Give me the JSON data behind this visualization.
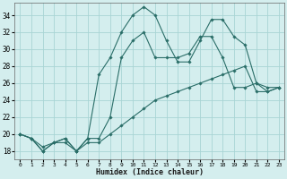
{
  "title": "",
  "xlabel": "Humidex (Indice chaleur)",
  "bg_color": "#d4eeee",
  "grid_color": "#a8d4d4",
  "line_color": "#2a6e68",
  "xlim": [
    -0.5,
    23.5
  ],
  "ylim": [
    17,
    35.5
  ],
  "yticks": [
    18,
    20,
    22,
    24,
    26,
    28,
    30,
    32,
    34
  ],
  "xticks": [
    0,
    1,
    2,
    3,
    4,
    5,
    6,
    7,
    8,
    9,
    10,
    11,
    12,
    13,
    14,
    15,
    16,
    17,
    18,
    19,
    20,
    21,
    22,
    23
  ],
  "line1_x": [
    0,
    1,
    2,
    3,
    4,
    5,
    6,
    7,
    8,
    9,
    10,
    11,
    12,
    13,
    14,
    15,
    16,
    17,
    18,
    19,
    20,
    21,
    22,
    23
  ],
  "line1_y": [
    20,
    19.5,
    18,
    19,
    19.5,
    18,
    19.5,
    27,
    29,
    32,
    34,
    35,
    34,
    31,
    28.5,
    28.5,
    31,
    33.5,
    33.5,
    31.5,
    30.5,
    26,
    25,
    25.5
  ],
  "line2_x": [
    0,
    1,
    2,
    3,
    4,
    5,
    6,
    7,
    8,
    9,
    10,
    11,
    12,
    13,
    14,
    15,
    16,
    17,
    18,
    19,
    20,
    21,
    22,
    23
  ],
  "line2_y": [
    20,
    19.5,
    18,
    19,
    19.5,
    18,
    19.5,
    19.5,
    22,
    29,
    31,
    32,
    29,
    29,
    29,
    29.5,
    31.5,
    31.5,
    29,
    25.5,
    25.5,
    26,
    25.5,
    25.5
  ],
  "line3_x": [
    0,
    1,
    2,
    3,
    4,
    5,
    6,
    7,
    8,
    9,
    10,
    11,
    12,
    13,
    14,
    15,
    16,
    17,
    18,
    19,
    20,
    21,
    22,
    23
  ],
  "line3_y": [
    20,
    19.5,
    18.5,
    19,
    19,
    18,
    19,
    19,
    20,
    21,
    22,
    23,
    24,
    24.5,
    25,
    25.5,
    26,
    26.5,
    27,
    27.5,
    28,
    25,
    25,
    25.5
  ]
}
